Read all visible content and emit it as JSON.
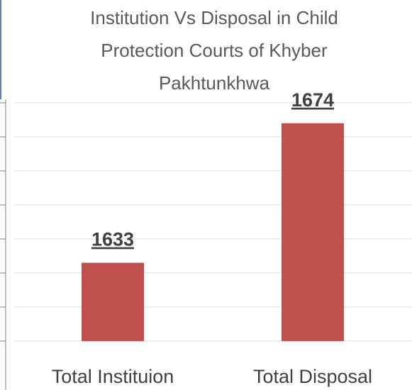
{
  "chart_data": {
    "type": "bar",
    "title": "Institution Vs Disposal in Child Protection Courts of Khyber Pakhtunkhwa",
    "categories": [
      "Total Instituion",
      "Total Disposal"
    ],
    "values": [
      1633,
      1674
    ],
    "color": "#c0504d",
    "ylim": [
      1610,
      1680
    ],
    "yticks": [
      1610,
      1620,
      1630,
      1640,
      1650,
      1660,
      1670,
      1680
    ],
    "grid": true
  }
}
